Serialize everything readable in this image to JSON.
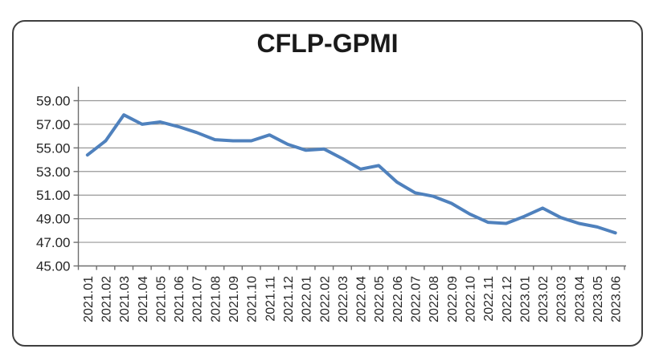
{
  "chart": {
    "title": "CFLP-GPMI"
  },
  "chart_data": {
    "type": "line",
    "title": "CFLP-GPMI",
    "categories": [
      "2021.01",
      "2021.02",
      "2021.03",
      "2021.04",
      "2021.05",
      "2021.06",
      "2021.07",
      "2021.08",
      "2021.09",
      "2021.10",
      "2021.11",
      "2021.12",
      "2022.01",
      "2022.02",
      "2022.03",
      "2022.04",
      "2022.05",
      "2022.06",
      "2022.07",
      "2022.08",
      "2022.09",
      "2022.10",
      "2022.11",
      "2022.12",
      "2023.01",
      "2023.02",
      "2023.03",
      "2023.04",
      "2023.05",
      "2023.06"
    ],
    "series": [
      {
        "name": "CFLP-GPMI",
        "values": [
          54.4,
          55.6,
          57.8,
          57.0,
          57.2,
          56.8,
          56.3,
          55.7,
          55.6,
          55.6,
          56.1,
          55.3,
          54.8,
          54.9,
          54.1,
          53.2,
          53.5,
          52.1,
          51.2,
          50.9,
          50.3,
          49.4,
          48.7,
          48.6,
          49.2,
          49.9,
          49.1,
          48.6,
          48.3,
          47.8
        ]
      }
    ],
    "xlabel": "",
    "ylabel": "",
    "ylim": [
      45,
      59
    ],
    "ytick_step": 2,
    "ytick_labels": [
      "45.00",
      "47.00",
      "49.00",
      "51.00",
      "53.00",
      "55.00",
      "57.00",
      "59.00"
    ],
    "grid": true,
    "legend_position": "none",
    "x_labels_rotated_90": true,
    "line_color": "#4F81BD",
    "gridline_color": "#979797",
    "axis_color": "#6e6e6e",
    "label_color": "#262626",
    "background_color": "#ffffff",
    "frame_border_color": "#3f3f3f"
  }
}
